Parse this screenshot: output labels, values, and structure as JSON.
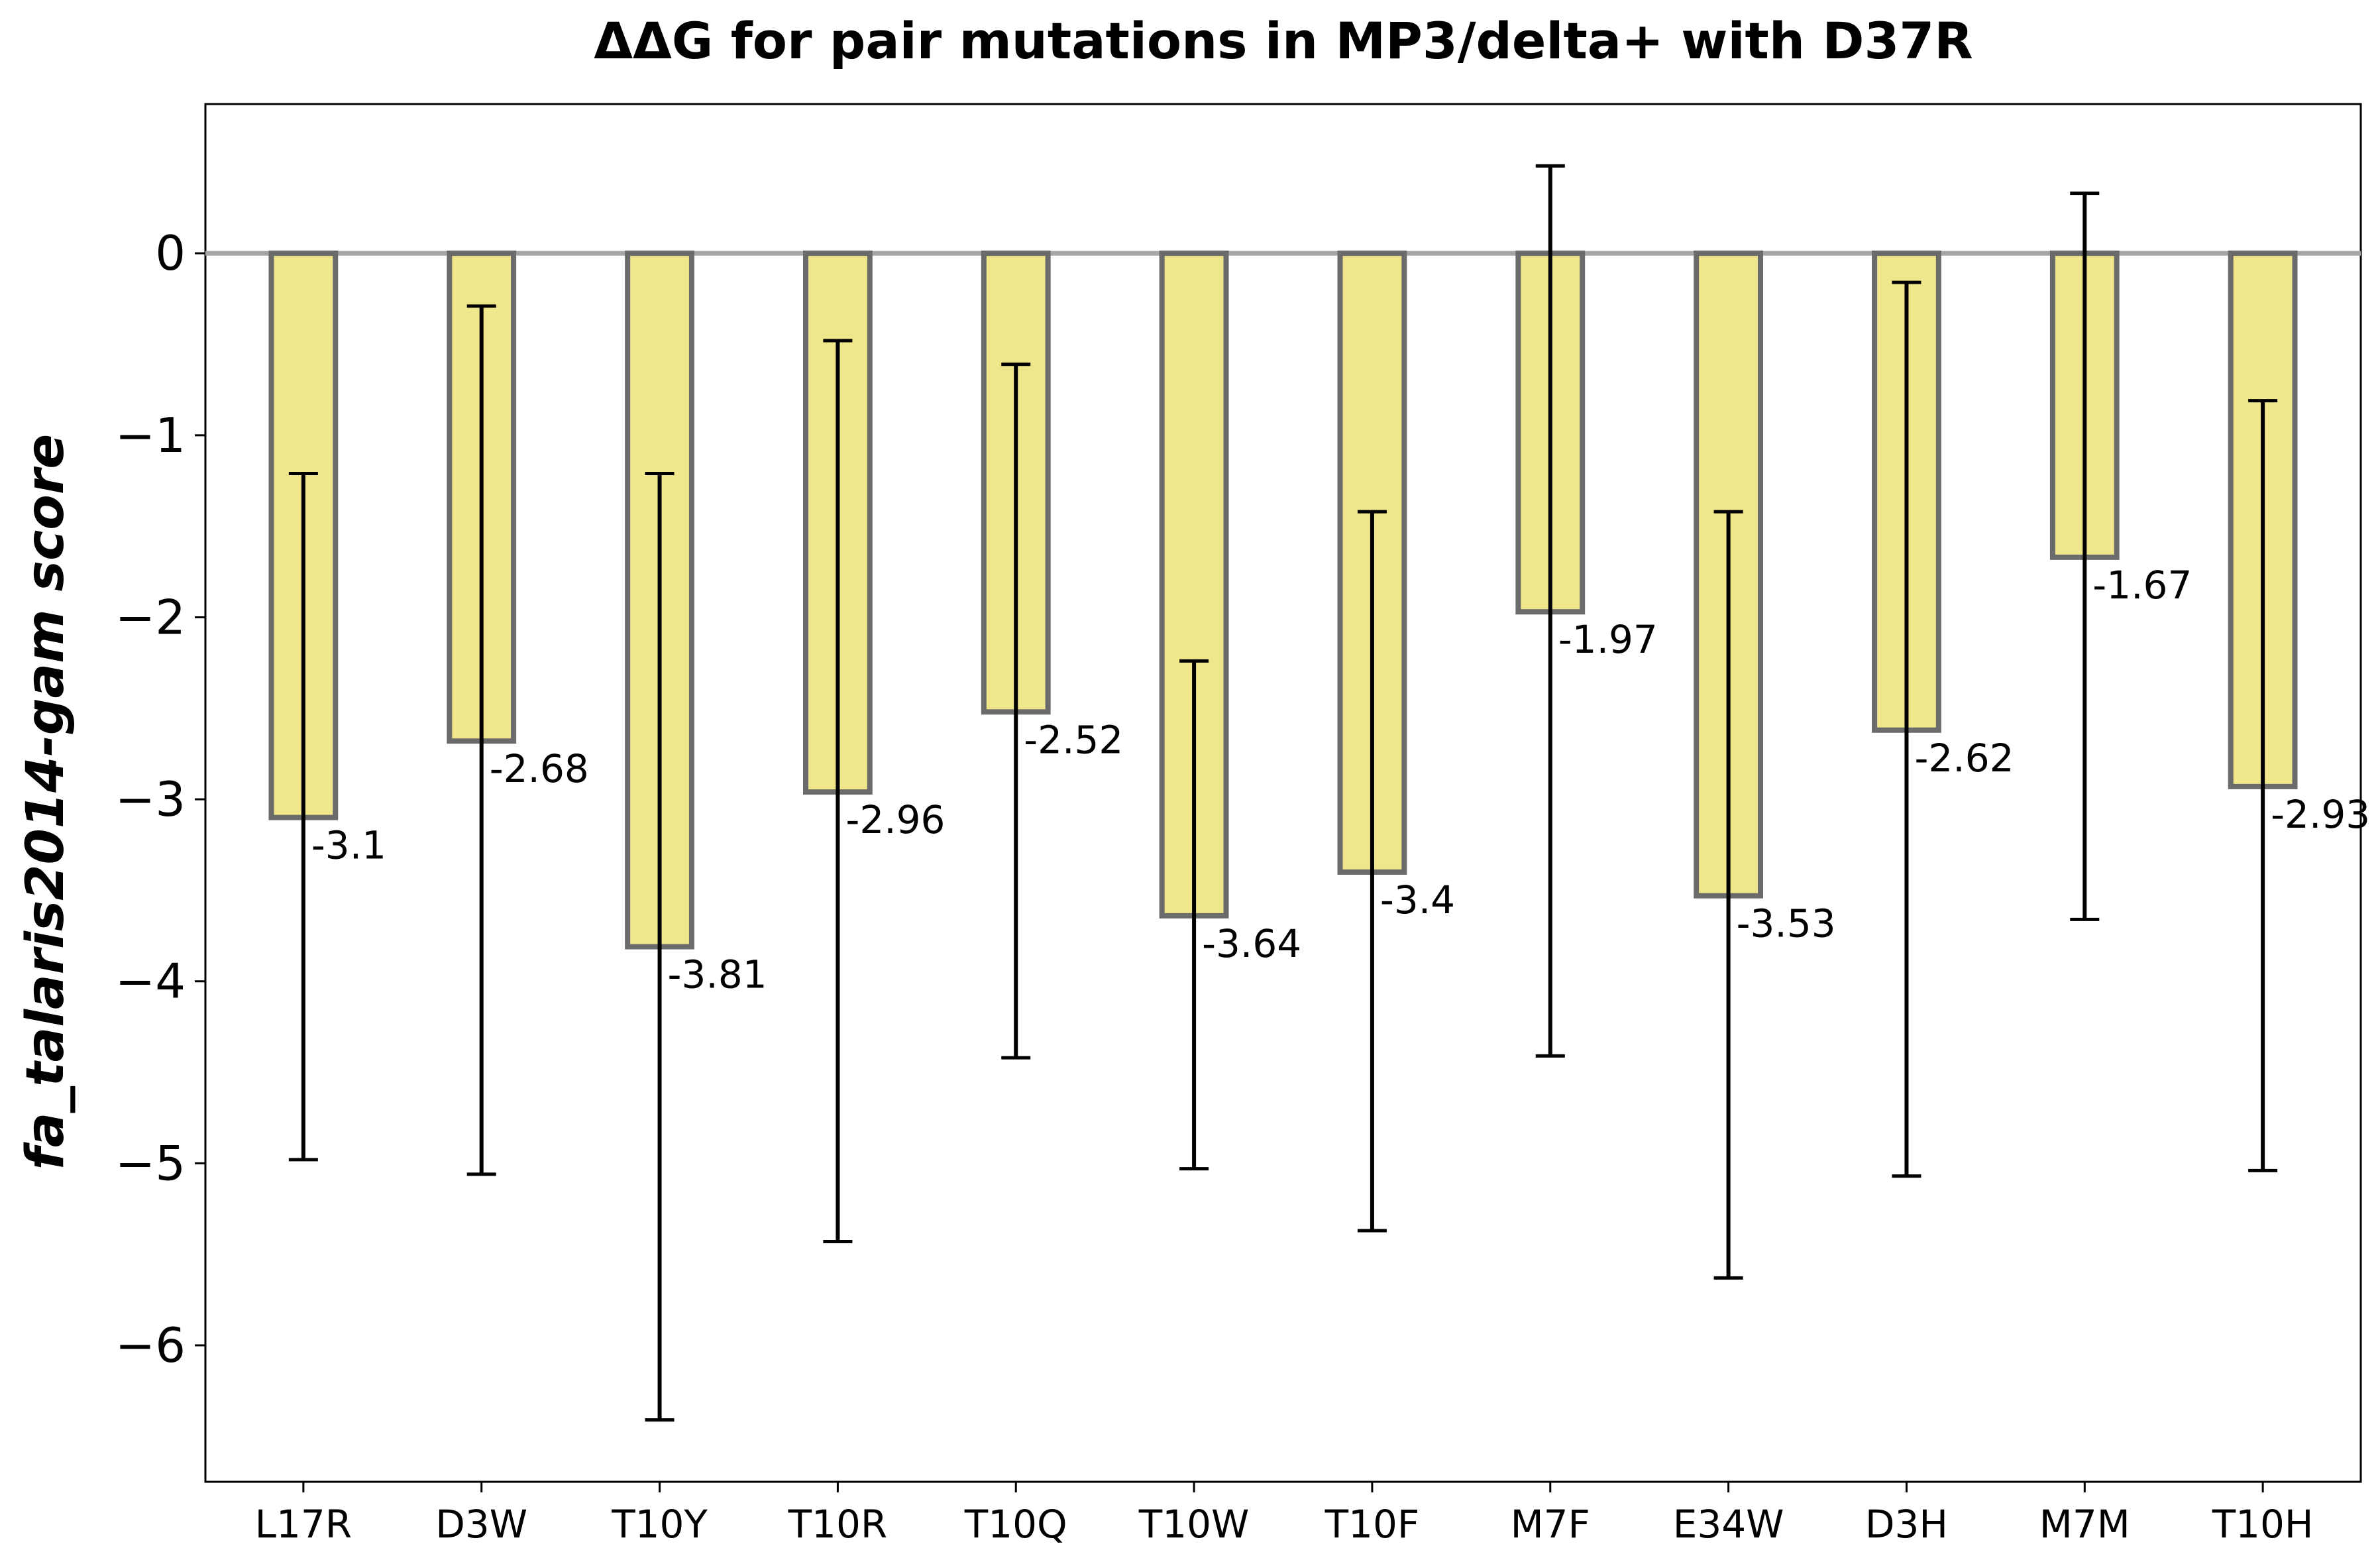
{
  "chart_data": {
    "type": "bar",
    "title": "ΔΔG for pair mutations in MP3/delta+ with D37R",
    "xlabel": "",
    "ylabel": "fa_talaris2014-gam score",
    "categories": [
      "L17R",
      "D3W",
      "T10Y",
      "T10R",
      "T10Q",
      "T10W",
      "T10F",
      "M7F",
      "E34W",
      "D3H",
      "M7M",
      "T10H"
    ],
    "values": [
      -3.1,
      -2.68,
      -3.81,
      -2.96,
      -2.52,
      -3.64,
      -3.4,
      -1.97,
      -3.53,
      -2.62,
      -1.67,
      -2.93
    ],
    "value_labels": [
      "-3.1",
      "-2.68",
      "-3.81",
      "-2.96",
      "-2.52",
      "-3.64",
      "-3.4",
      "-1.97",
      "-3.53",
      "-2.62",
      "-1.67",
      "-2.93"
    ],
    "error_low": [
      -4.98,
      -5.06,
      -6.41,
      -5.43,
      -4.42,
      -5.03,
      -5.37,
      -4.41,
      -5.63,
      -5.07,
      -3.66,
      -5.04
    ],
    "error_high": [
      -1.21,
      -0.29,
      -1.21,
      -0.48,
      -0.61,
      -2.24,
      -1.42,
      0.48,
      -1.42,
      -0.16,
      0.33,
      -0.81
    ],
    "ylim": [
      -6.75,
      0.82
    ],
    "yticks": [
      0,
      -1,
      -2,
      -3,
      -4,
      -5,
      -6
    ],
    "ytick_labels": [
      "0",
      "−1",
      "−2",
      "−3",
      "−4",
      "−5",
      "−6"
    ],
    "zero_line": true,
    "grid": false,
    "legend": "none",
    "colors": {
      "bar_fill": "#f0e68c",
      "bar_edge": "#6b6b6b",
      "error_bar": "#000000",
      "zero_line": "#a6a6a6",
      "axes": "#000000"
    }
  }
}
